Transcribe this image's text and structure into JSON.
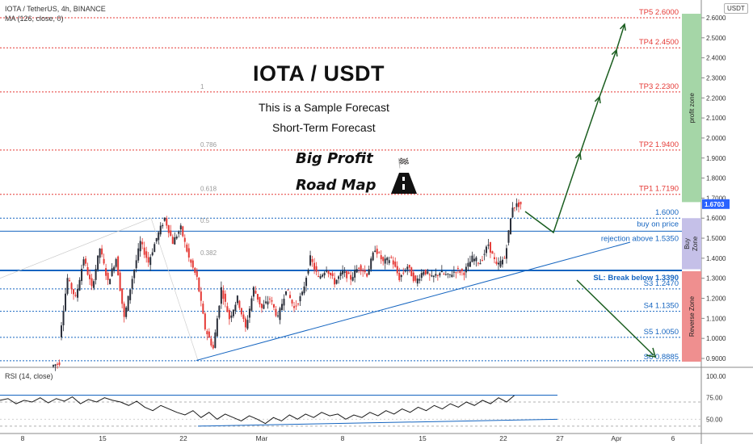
{
  "header": {
    "symbol_line": "IOTA / TetherUS, 4h, BINANCE",
    "ma_line": "MA (126, close, 0)",
    "currency_badge": "USDT"
  },
  "annotations": {
    "title": "IOTA / USDT",
    "subtitle1": "This is a Sample Forecast",
    "subtitle2": "Short-Term Forecast",
    "big_profit": "Big Profit",
    "road_map": "Road Map"
  },
  "colors": {
    "tp_red": "#e53935",
    "support_blue": "#1565c0",
    "candle_up": "#2a2e39",
    "candle_down": "#e53935",
    "arrow_green": "#1b5e20",
    "profit_zone": "#a5d6a7",
    "buy_zone": "#c5c0e8",
    "reverse_zone": "#ef8f8f",
    "price_tag": "#2962ff"
  },
  "chart_data": {
    "type": "candlestick",
    "x_tick_labels": [
      "8",
      "15",
      "22",
      "Mar",
      "8",
      "15",
      "22",
      "27",
      "Apr",
      "6"
    ],
    "y_tick_labels": [
      "0.9000",
      "1.0000",
      "1.1000",
      "1.2000",
      "1.3000",
      "1.4000",
      "1.5000",
      "1.6000",
      "1.7000",
      "1.8000",
      "1.9000",
      "2.0000",
      "2.1000",
      "2.2000",
      "2.3000",
      "2.4000",
      "2.5000",
      "2.6000"
    ],
    "ylim": [
      0.88,
      2.62
    ],
    "current_price": "1.6703",
    "fib_levels": [
      {
        "label": "1",
        "price": 2.23
      },
      {
        "label": "0.786",
        "price": 1.94
      },
      {
        "label": "0.618",
        "price": 1.719
      },
      {
        "label": "0.5",
        "price": 1.56
      },
      {
        "label": "0.382",
        "price": 1.4
      }
    ],
    "levels": [
      {
        "label": "TP5 2.6000",
        "price": 2.6,
        "kind": "tp"
      },
      {
        "label": "TP4 2.4500",
        "price": 2.45,
        "kind": "tp"
      },
      {
        "label": "TP3 2.2300",
        "price": 2.23,
        "kind": "tp"
      },
      {
        "label": "TP2 1.9400",
        "price": 1.94,
        "kind": "tp"
      },
      {
        "label": "TP1 1.7190",
        "price": 1.719,
        "kind": "tp"
      },
      {
        "label": "1.6000",
        "price": 1.6,
        "kind": "support"
      },
      {
        "label": "buy on price",
        "price": 1.535,
        "kind": "buy"
      },
      {
        "label": "rejection above 1.5350",
        "price": 1.535,
        "kind": "support_text"
      },
      {
        "label": "SL: Break below 1.3390",
        "price": 1.339,
        "kind": "sl"
      },
      {
        "label": "S3 1.2470",
        "price": 1.247,
        "kind": "support"
      },
      {
        "label": "S4 1.1350",
        "price": 1.135,
        "kind": "support"
      },
      {
        "label": "S5 1.0050",
        "price": 1.005,
        "kind": "support"
      },
      {
        "label": "S6 0.8885",
        "price": 0.8885,
        "kind": "support"
      }
    ],
    "zones": [
      {
        "label": "profit zone",
        "from": 1.68,
        "to": 2.62
      },
      {
        "label": "Buy Zone",
        "from": 1.345,
        "to": 1.6
      },
      {
        "label": "Reverse Zone",
        "from": 0.88,
        "to": 1.335
      }
    ],
    "price_path": [
      [
        0.86,
        0.88
      ],
      [
        1.0,
        1.3
      ],
      [
        1.3,
        1.2
      ],
      [
        1.2,
        1.4
      ],
      [
        1.4,
        1.25
      ],
      [
        1.25,
        1.45
      ],
      [
        1.45,
        1.28
      ],
      [
        1.28,
        1.4
      ],
      [
        1.4,
        1.1
      ],
      [
        1.1,
        1.3
      ],
      [
        1.3,
        1.48
      ],
      [
        1.48,
        1.38
      ],
      [
        1.38,
        1.5
      ],
      [
        1.5,
        1.6
      ],
      [
        1.6,
        1.48
      ],
      [
        1.48,
        1.55
      ],
      [
        1.55,
        1.4
      ],
      [
        1.4,
        1.3
      ],
      [
        1.3,
        1.05
      ],
      [
        1.05,
        0.95
      ],
      [
        0.95,
        1.25
      ],
      [
        1.25,
        1.1
      ],
      [
        1.1,
        1.2
      ],
      [
        1.2,
        1.05
      ],
      [
        1.05,
        1.25
      ],
      [
        1.25,
        1.15
      ],
      [
        1.15,
        1.2
      ],
      [
        1.2,
        1.1
      ],
      [
        1.1,
        1.25
      ],
      [
        1.25,
        1.15
      ],
      [
        1.15,
        1.22
      ],
      [
        1.22,
        1.4
      ],
      [
        1.4,
        1.3
      ],
      [
        1.3,
        1.35
      ],
      [
        1.35,
        1.28
      ],
      [
        1.28,
        1.33
      ],
      [
        1.33,
        1.3
      ],
      [
        1.3,
        1.36
      ],
      [
        1.36,
        1.32
      ],
      [
        1.32,
        1.45
      ],
      [
        1.45,
        1.38
      ],
      [
        1.38,
        1.4
      ],
      [
        1.4,
        1.3
      ],
      [
        1.3,
        1.36
      ],
      [
        1.36,
        1.28
      ],
      [
        1.28,
        1.34
      ],
      [
        1.34,
        1.3
      ],
      [
        1.3,
        1.33
      ],
      [
        1.33,
        1.31
      ],
      [
        1.31,
        1.34
      ],
      [
        1.34,
        1.33
      ],
      [
        1.33,
        1.4
      ],
      [
        1.4,
        1.38
      ],
      [
        1.38,
        1.47
      ],
      [
        1.47,
        1.36
      ],
      [
        1.36,
        1.4
      ],
      [
        1.4,
        1.66
      ],
      [
        1.66,
        1.67
      ]
    ],
    "rsi": {
      "label": "RSI (14, close)",
      "tick_labels": [
        "100.00",
        "75.00",
        "50.00"
      ],
      "ylim": [
        35,
        105
      ],
      "values": [
        72,
        74,
        68,
        72,
        70,
        75,
        69,
        74,
        71,
        76,
        68,
        73,
        70,
        75,
        72,
        70,
        66,
        71,
        64,
        60,
        66,
        62,
        58,
        55,
        60,
        52,
        58,
        50,
        56,
        52,
        48,
        54,
        50,
        45,
        52,
        48,
        55,
        50,
        56,
        52,
        58,
        54,
        56,
        50,
        55,
        52,
        58,
        54,
        60,
        56,
        62,
        58,
        64,
        60,
        66,
        62,
        68,
        64,
        70,
        66,
        72,
        68,
        75,
        70,
        78
      ]
    }
  }
}
